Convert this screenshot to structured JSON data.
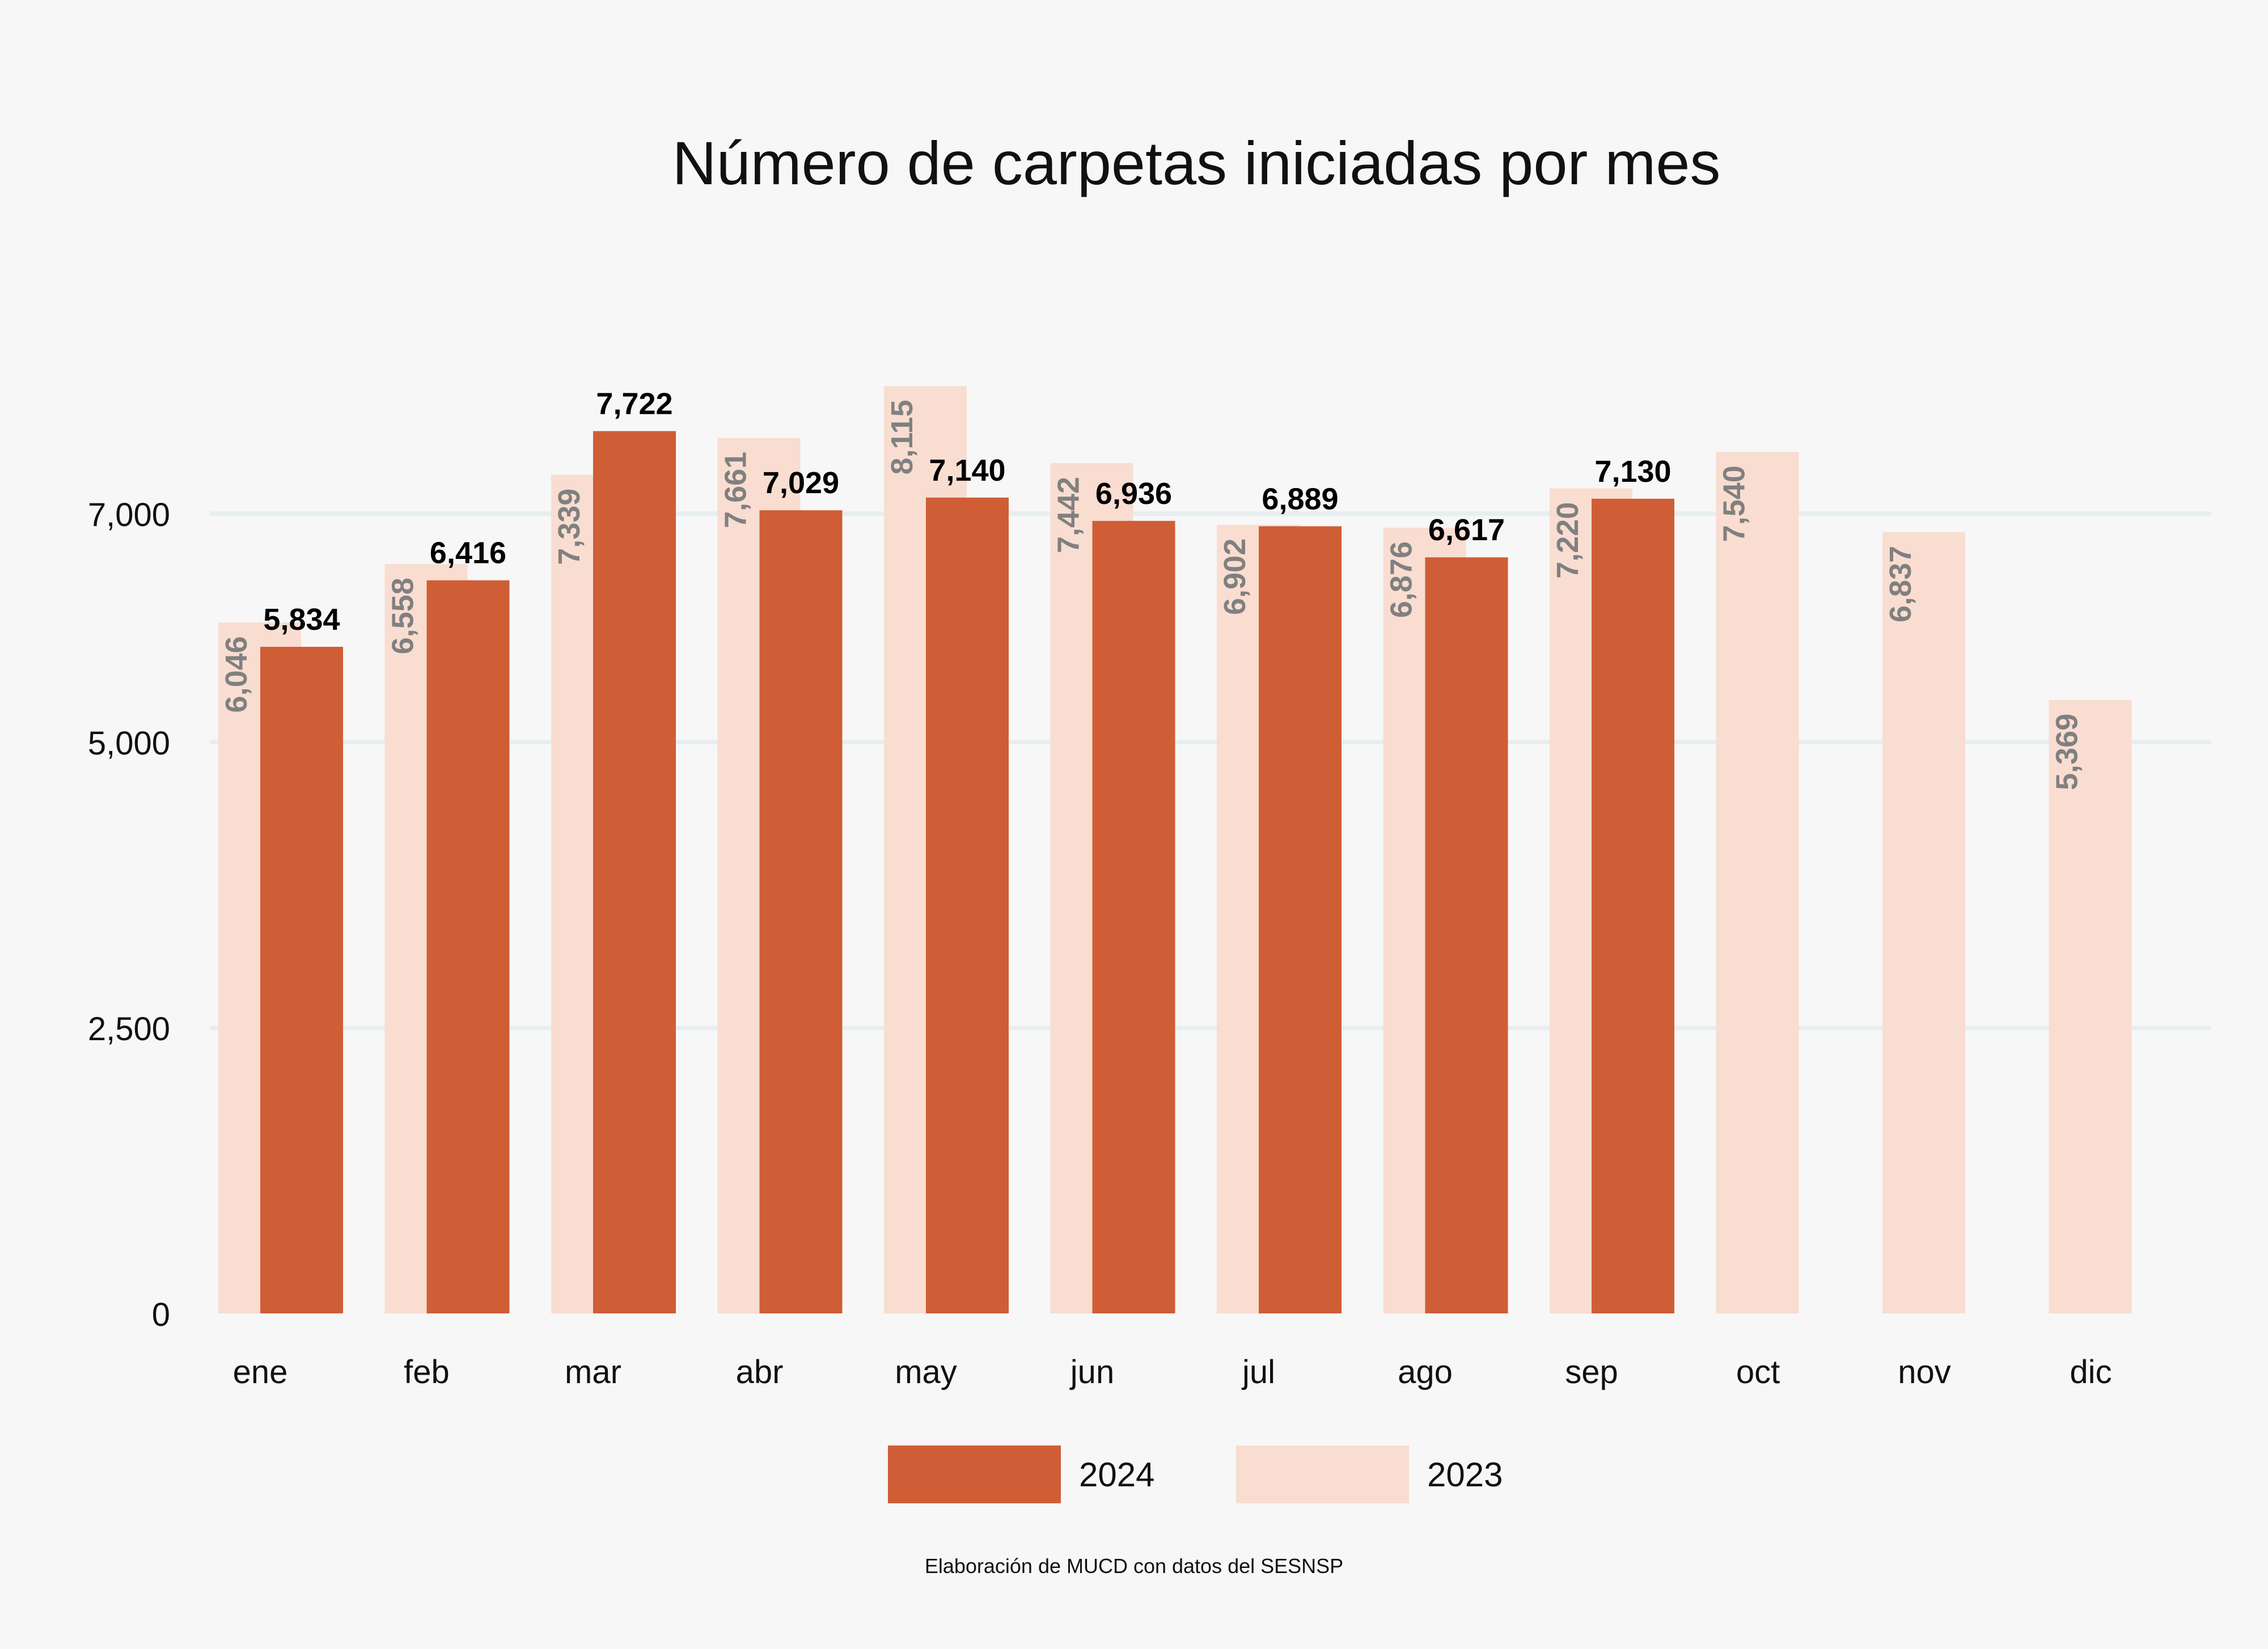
{
  "chart_data": {
    "type": "bar",
    "title": "Número de carpetas iniciadas por mes",
    "xlabel": "",
    "ylabel": "",
    "categories": [
      "ene",
      "feb",
      "mar",
      "abr",
      "may",
      "jun",
      "jul",
      "ago",
      "sep",
      "oct",
      "nov",
      "dic"
    ],
    "series": [
      {
        "name": "2023",
        "color": "#f9ddd1",
        "label_color": "#808080",
        "values": [
          6046,
          6558,
          7339,
          7661,
          8115,
          7442,
          6902,
          6876,
          7220,
          7540,
          6837,
          5369
        ],
        "labels": [
          "6,046",
          "6,558",
          "7,339",
          "7,661",
          "8,115",
          "7,442",
          "6,902",
          "6,876",
          "7,220",
          "7,540",
          "6,837",
          "5,369"
        ]
      },
      {
        "name": "2024",
        "color": "#cf5e36",
        "label_color": "#000000",
        "values": [
          5834,
          6416,
          7722,
          7029,
          7140,
          6936,
          6889,
          6617,
          7130,
          null,
          null,
          null
        ],
        "labels": [
          "5,834",
          "6,416",
          "7,722",
          "7,029",
          "7,140",
          "6,936",
          "6,889",
          "6,617",
          "7,130",
          "",
          "",
          ""
        ]
      }
    ],
    "yticks": [
      0,
      2500,
      5000,
      7000
    ],
    "ytick_labels": [
      "0",
      "2,500",
      "5,000",
      "7,000"
    ],
    "ylim": [
      0,
      8500
    ],
    "grid": true,
    "legend": {
      "placement": "bottom",
      "entries": [
        "2024",
        "2023"
      ]
    }
  },
  "footer": "Elaboración de MUCD con datos del SESNSP"
}
